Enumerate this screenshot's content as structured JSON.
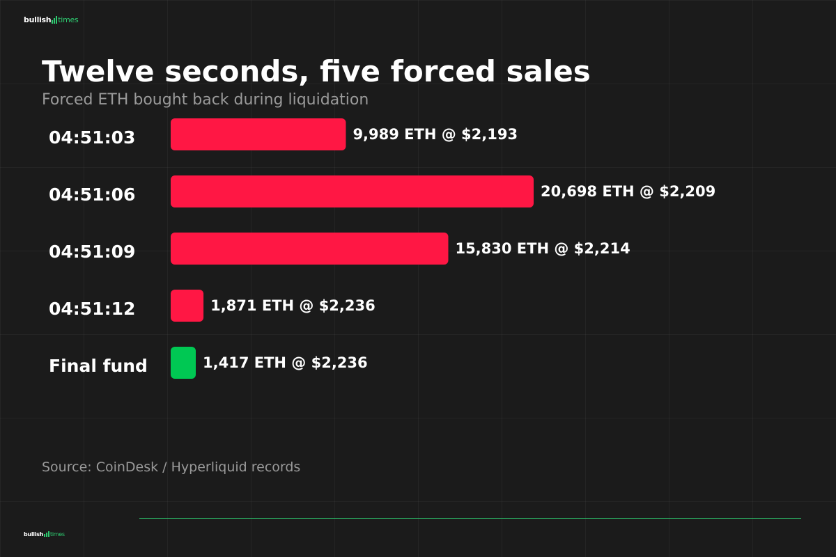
{
  "branding": {
    "logo_bullish": "bullish",
    "logo_times": "times"
  },
  "chart_data": {
    "type": "bar",
    "orientation": "horizontal",
    "title": "Twelve seconds, five forced sales",
    "subtitle": "Forced ETH bought back during liquidation",
    "categories": [
      "04:51:03",
      "04:51:06",
      "04:51:09",
      "04:51:12",
      "Final fund"
    ],
    "values": [
      9989,
      20698,
      15830,
      1871,
      1417
    ],
    "prices": [
      2193,
      2209,
      2214,
      2236,
      2236
    ],
    "value_labels": [
      "9,989 ETH @ $2,193",
      "20,698 ETH @ $2,209",
      "15,830 ETH @ $2,214",
      "1,871 ETH @ $2,236",
      "1,417 ETH @ $2,236"
    ],
    "bar_colors": [
      "#ff1744",
      "#ff1744",
      "#ff1744",
      "#ff1744",
      "#00c853"
    ],
    "unit": "ETH",
    "grid": true,
    "legend": "none"
  },
  "source": "Source: CoinDesk / Hyperliquid records",
  "colors": {
    "background": "#1b1b1b",
    "liquidation_bar": "#ff1744",
    "final_fund_bar": "#00c853",
    "accent": "#2ecc71",
    "muted_text": "#9a9a9a"
  }
}
